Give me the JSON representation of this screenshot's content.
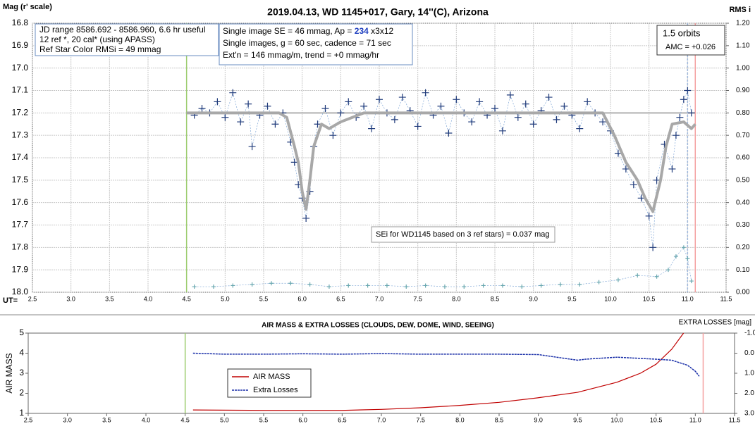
{
  "chart_data": [
    {
      "type": "line",
      "title": "2019.04.13, WD 1145+017, Gary, 14''(C), Arizona",
      "ylabel": "Mag (r' scale)",
      "y2label": "RMS i",
      "xprefix": "UT=",
      "xlim": [
        2.5,
        11.5
      ],
      "xticks": [
        2.5,
        {
          "value": 3,
          "label": "3.0"
        },
        3.5,
        {
          "value": 4,
          "label": "4.0"
        },
        4.5,
        {
          "value": 5,
          "label": "5.0"
        },
        5.5,
        {
          "value": 6,
          "label": "6.0"
        },
        6.5,
        {
          "value": 7,
          "label": "7.0"
        },
        7.5,
        {
          "value": 8,
          "label": "8.0"
        },
        8.5,
        {
          "value": 9,
          "label": "9.0"
        },
        9.5,
        {
          "value": 10,
          "label": "10.0"
        },
        10.5,
        {
          "value": 11,
          "label": "11.0"
        },
        11.5
      ],
      "ylim": [
        16.8,
        18.0
      ],
      "y_inverted": true,
      "yticks": [
        16.8,
        16.9,
        {
          "value": 17,
          "label": "17.0"
        },
        17.1,
        17.2,
        17.3,
        17.4,
        17.5,
        17.6,
        17.7,
        17.8,
        17.9,
        {
          "value": 18,
          "label": "18.0"
        }
      ],
      "y2lim": [
        0,
        1.2
      ],
      "y2_inverted": false,
      "y2ticks": [
        {
          "value": 1.2,
          "label": "1.20"
        },
        {
          "value": 1.1,
          "label": "1.10"
        },
        {
          "value": 1.0,
          "label": "1.00"
        },
        {
          "value": 0.9,
          "label": "0.90"
        },
        {
          "value": 0.8,
          "label": "0.80"
        },
        {
          "value": 0.7,
          "label": "0.70"
        },
        {
          "value": 0.6,
          "label": "0.60"
        },
        {
          "value": 0.5,
          "label": "0.50"
        },
        {
          "value": 0.4,
          "label": "0.40"
        },
        {
          "value": 0.3,
          "label": "0.30"
        },
        {
          "value": 0.2,
          "label": "0.20"
        },
        {
          "value": 0.1,
          "label": "0.10"
        },
        {
          "value": 0.0,
          "label": "0.00"
        }
      ],
      "grid": true,
      "reference_line": 17.2,
      "vlines": [
        {
          "x": 4.5,
          "color": "#9ccc6e"
        },
        {
          "x": 11.1,
          "color": "#f4a0a0"
        },
        {
          "x": 11.0,
          "color": "#9fb8dc"
        }
      ],
      "series": [
        {
          "mode": "markers",
          "color": "#1f3a7a",
          "axis": "y",
          "x": [
            4.6,
            4.7,
            4.8,
            4.9,
            5.0,
            5.1,
            5.2,
            5.3,
            5.35,
            5.45,
            5.55,
            5.65,
            5.75,
            5.85,
            5.9,
            5.95,
            6.0,
            6.05,
            6.1,
            6.15,
            6.2,
            6.3,
            6.4,
            6.5,
            6.6,
            6.7,
            6.8,
            6.9,
            7.0,
            7.1,
            7.2,
            7.3,
            7.4,
            7.5,
            7.6,
            7.7,
            7.8,
            7.9,
            8.0,
            8.1,
            8.2,
            8.3,
            8.4,
            8.5,
            8.6,
            8.7,
            8.8,
            8.9,
            9.0,
            9.1,
            9.2,
            9.3,
            9.4,
            9.5,
            9.6,
            9.7,
            9.8,
            9.9,
            10.0,
            10.1,
            10.2,
            10.3,
            10.4,
            10.5,
            10.55,
            10.6,
            10.7,
            10.8,
            10.85,
            10.9,
            10.95,
            11.0,
            11.05
          ],
          "values": [
            17.21,
            17.18,
            17.2,
            17.15,
            17.22,
            17.11,
            17.24,
            17.16,
            17.35,
            17.21,
            17.17,
            17.25,
            17.2,
            17.33,
            17.42,
            17.52,
            17.58,
            17.67,
            17.55,
            17.35,
            17.25,
            17.18,
            17.3,
            17.2,
            17.15,
            17.22,
            17.17,
            17.27,
            17.14,
            17.2,
            17.23,
            17.13,
            17.19,
            17.26,
            17.11,
            17.21,
            17.17,
            17.29,
            17.14,
            17.2,
            17.24,
            17.15,
            17.21,
            17.18,
            17.28,
            17.12,
            17.22,
            17.16,
            17.25,
            17.19,
            17.13,
            17.23,
            17.17,
            17.21,
            17.27,
            17.15,
            17.2,
            17.24,
            17.28,
            17.38,
            17.45,
            17.52,
            17.58,
            17.66,
            17.8,
            17.5,
            17.34,
            17.45,
            17.3,
            17.22,
            17.14,
            17.1,
            17.2
          ]
        },
        {
          "mode": "line",
          "color": "#a8a8a8",
          "axis": "y",
          "x": [
            4.5,
            5.7,
            5.8,
            5.9,
            5.95,
            6.0,
            6.05,
            6.1,
            6.15,
            6.25,
            6.35,
            6.5,
            6.65,
            6.8,
            9.9,
            10.05,
            10.2,
            10.35,
            10.45,
            10.55,
            10.65,
            10.72,
            10.8,
            10.95,
            11.05,
            11.1
          ],
          "values": [
            17.2,
            17.2,
            17.22,
            17.35,
            17.42,
            17.55,
            17.63,
            17.5,
            17.35,
            17.25,
            17.27,
            17.24,
            17.22,
            17.2,
            17.2,
            17.3,
            17.42,
            17.5,
            17.58,
            17.64,
            17.5,
            17.35,
            17.25,
            17.24,
            17.27,
            17.25
          ]
        },
        {
          "mode": "markers",
          "color": "#6aa8b0",
          "axis": "y2",
          "x": [
            4.6,
            4.85,
            5.1,
            5.35,
            5.6,
            5.85,
            6.1,
            6.35,
            6.6,
            6.85,
            7.1,
            7.35,
            7.6,
            7.85,
            8.1,
            8.35,
            8.6,
            8.85,
            9.1,
            9.35,
            9.6,
            9.85,
            10.1,
            10.35,
            10.6,
            10.75,
            10.85,
            10.95,
            11.0,
            11.05
          ],
          "values": [
            0.025,
            0.025,
            0.03,
            0.035,
            0.04,
            0.04,
            0.035,
            0.025,
            0.03,
            0.03,
            0.03,
            0.025,
            0.03,
            0.025,
            0.025,
            0.03,
            0.03,
            0.025,
            0.03,
            0.035,
            0.035,
            0.045,
            0.055,
            0.075,
            0.07,
            0.1,
            0.16,
            0.2,
            0.15,
            0.05
          ]
        }
      ],
      "annotations": {
        "info": [
          "JD range 8586.692 - 8586.960, 6.6 hr useful",
          " 12 ref *, 20 cal* (using APASS)",
          "Ref Star Color RMSi = 49 mmag"
        ],
        "image": [
          [
            "Single image SE = 46 mmag, Ap = ",
            "234",
            " x3x12"
          ],
          [
            "Single images, g = 60 sec, cadence = 71 sec"
          ],
          [
            "Ext'n = 146 mmag/m, trend = +0 mmag/hr"
          ]
        ],
        "orbits": [
          "1.5 orbits",
          "AMC = +0.026"
        ],
        "sei": "SEi for WD1145 based on 3 ref stars) = 0.037 mag"
      }
    },
    {
      "type": "line",
      "title": "AIR MASS & EXTRA LOSSES (CLOUDS, DEW, DOME, WIND, SEEING)",
      "ylabel": "AIR MASS",
      "y2label": "EXTRA LOSSES [mag]",
      "xlim": [
        2.5,
        11.5
      ],
      "xticks": [
        2.5,
        {
          "value": 3,
          "label": "3.0"
        },
        3.5,
        {
          "value": 4,
          "label": "4.0"
        },
        4.5,
        {
          "value": 5,
          "label": "5.0"
        },
        5.5,
        {
          "value": 6,
          "label": "6.0"
        },
        6.5,
        {
          "value": 7,
          "label": "7.0"
        },
        7.5,
        {
          "value": 8,
          "label": "8.0"
        },
        8.5,
        {
          "value": 9,
          "label": "9.0"
        },
        9.5,
        {
          "value": 10,
          "label": "10.0"
        },
        10.5,
        {
          "value": 11,
          "label": "11.0"
        },
        11.5
      ],
      "ylim": [
        1,
        5
      ],
      "y_inverted": false,
      "yticks": [
        1,
        2,
        3,
        4,
        5
      ],
      "y2lim": [
        -1,
        3
      ],
      "y2_inverted": true,
      "y2ticks": [
        {
          "value": -1,
          "label": "-1.0"
        },
        {
          "value": 0,
          "label": "0.0"
        },
        {
          "value": 1,
          "label": "1.0"
        },
        {
          "value": 2,
          "label": "2.0"
        },
        {
          "value": 3,
          "label": "3.0"
        }
      ],
      "grid": false,
      "vlines": [
        {
          "x": 4.5,
          "color": "#9ccc6e"
        },
        {
          "x": 11.1,
          "color": "#f4a0a0"
        }
      ],
      "series": [
        {
          "name": "AIR MASS",
          "mode": "line",
          "color": "#c00000",
          "axis": "y",
          "x": [
            4.6,
            5.5,
            6.5,
            7.0,
            7.5,
            8.0,
            8.5,
            9.0,
            9.5,
            10.0,
            10.3,
            10.5,
            10.7,
            10.85
          ],
          "values": [
            1.17,
            1.15,
            1.15,
            1.2,
            1.28,
            1.4,
            1.55,
            1.78,
            2.05,
            2.55,
            3.0,
            3.45,
            4.2,
            5.0
          ]
        },
        {
          "name": "Extra Losses",
          "mode": "dashed",
          "color": "#1a2fa8",
          "axis": "y2",
          "x": [
            4.6,
            5.0,
            5.5,
            6.0,
            6.5,
            7.0,
            7.5,
            8.0,
            8.5,
            9.0,
            9.5,
            9.6,
            10.0,
            10.5,
            10.7,
            10.9,
            11.0,
            11.05
          ],
          "values": [
            0.0,
            0.05,
            0.05,
            0.03,
            0.05,
            0.02,
            0.05,
            0.05,
            0.05,
            0.07,
            0.35,
            0.3,
            0.2,
            0.3,
            0.35,
            0.6,
            0.9,
            1.15
          ]
        }
      ]
    }
  ]
}
